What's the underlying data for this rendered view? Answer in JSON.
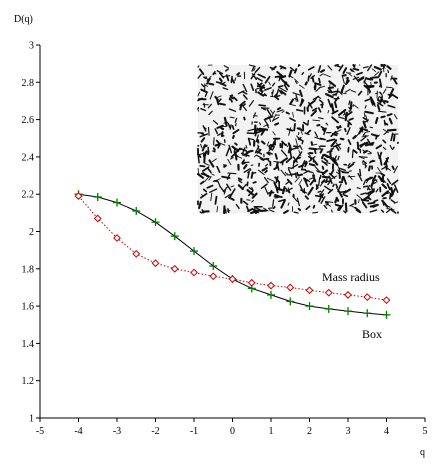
{
  "chart_data": {
    "type": "line",
    "title": "",
    "xlabel": "q",
    "ylabel": "D(q)",
    "xlim": [
      -5,
      5
    ],
    "ylim": [
      1,
      3
    ],
    "xticks": [
      "-5",
      "-4",
      "-3",
      "-2",
      "-1",
      "0",
      "1",
      "2",
      "3",
      "4",
      "5"
    ],
    "yticks": [
      "1",
      "1.2",
      "1.4",
      "1.6",
      "1.8",
      "2",
      "2.2",
      "2.4",
      "2.6",
      "2.8",
      "3"
    ],
    "grid": false,
    "inset_image": "fractal-pattern",
    "series": [
      {
        "name": "Box",
        "marker": "plus",
        "line_style": "solid",
        "line_color": "#000000",
        "marker_color": "#007a00",
        "x": [
          -4,
          -3.5,
          -3,
          -2.5,
          -2,
          -1.5,
          -1,
          -0.5,
          0,
          0.5,
          1,
          1.5,
          2,
          2.5,
          3,
          3.5,
          4
        ],
        "y": [
          2.2,
          2.185,
          2.155,
          2.11,
          2.05,
          1.975,
          1.895,
          1.815,
          1.745,
          1.695,
          1.66,
          1.625,
          1.6,
          1.585,
          1.573,
          1.562,
          1.553
        ]
      },
      {
        "name": "Mass radius",
        "marker": "diamond",
        "line_style": "dotted",
        "line_color": "#cc0000",
        "marker_color": "#cc0000",
        "x": [
          -4,
          -3.5,
          -3,
          -2.5,
          -2,
          -1.5,
          -1,
          -0.5,
          0,
          0.5,
          1,
          1.5,
          2,
          2.5,
          3,
          3.5,
          4
        ],
        "y": [
          2.19,
          2.07,
          1.965,
          1.88,
          1.83,
          1.8,
          1.78,
          1.76,
          1.745,
          1.725,
          1.71,
          1.7,
          1.685,
          1.672,
          1.66,
          1.648,
          1.632
        ]
      }
    ]
  }
}
